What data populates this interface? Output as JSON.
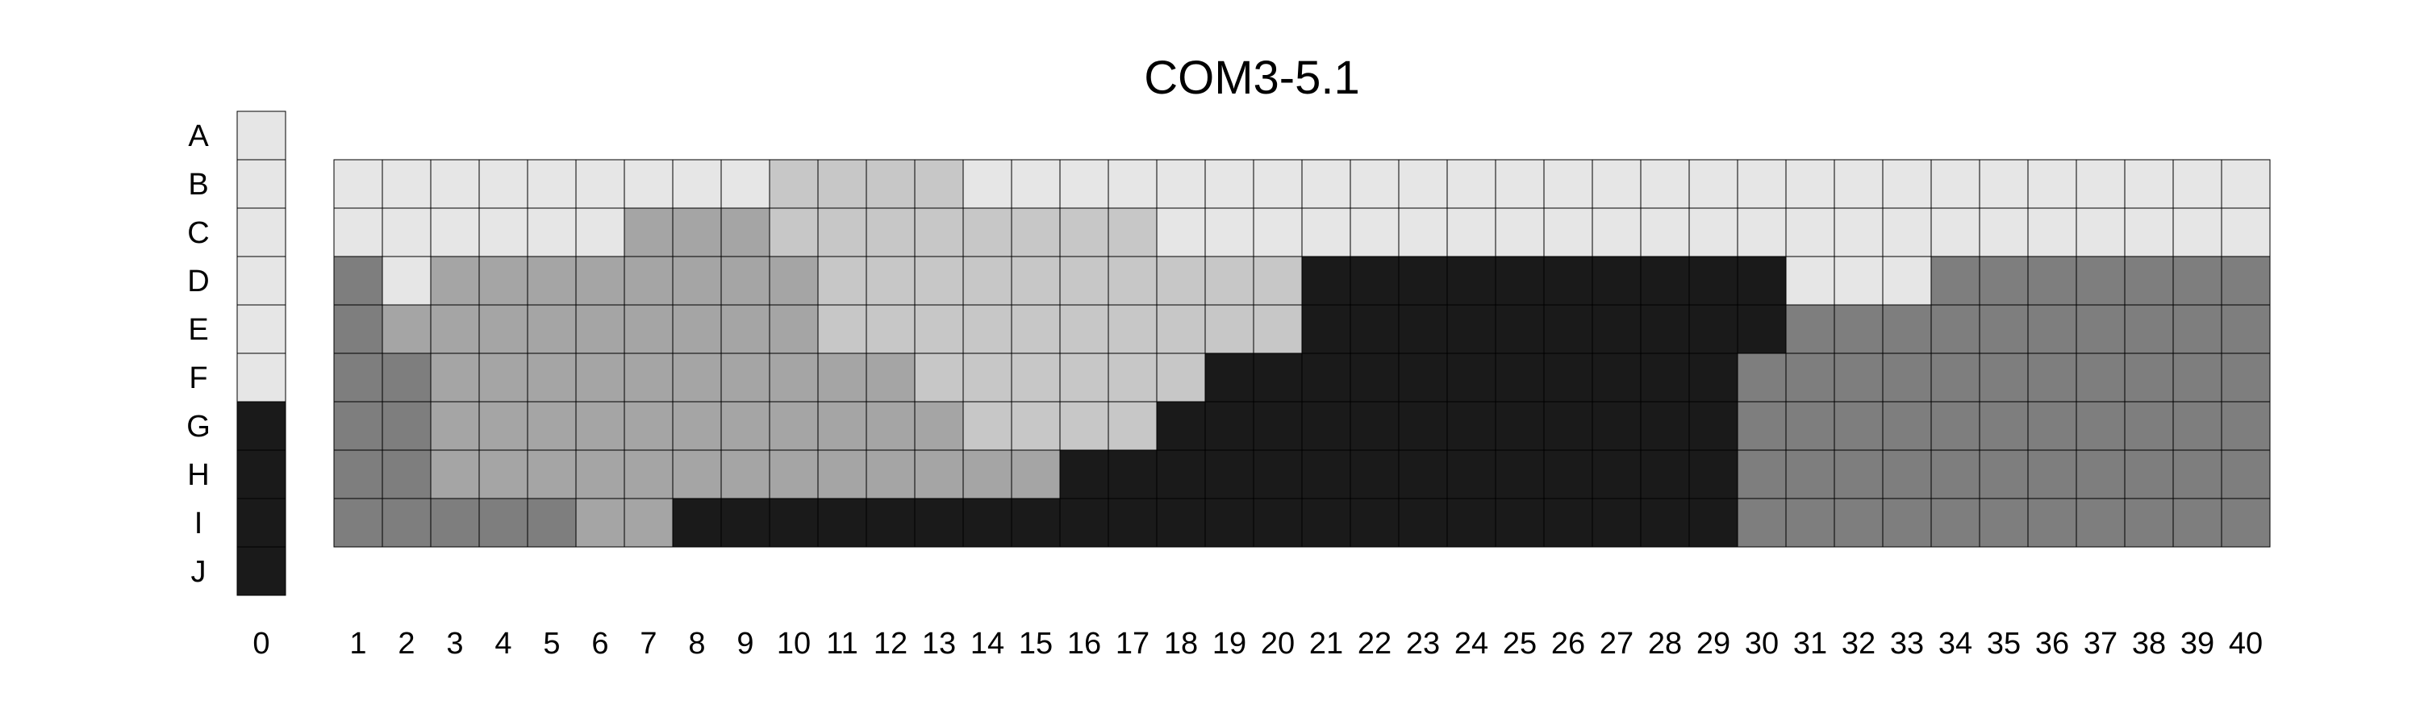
{
  "chart_data": {
    "type": "heatmap",
    "title": "COM3-5.1",
    "row_labels": [
      "A",
      "B",
      "C",
      "D",
      "E",
      "F",
      "G",
      "H",
      "I",
      "J"
    ],
    "column_labels": [
      "0",
      "1",
      "2",
      "3",
      "4",
      "5",
      "6",
      "7",
      "8",
      "9",
      "10",
      "11",
      "12",
      "13",
      "14",
      "15",
      "16",
      "17",
      "18",
      "19",
      "20",
      "21",
      "22",
      "23",
      "24",
      "25",
      "26",
      "27",
      "28",
      "29",
      "30",
      "31",
      "32",
      "33",
      "34",
      "35",
      "36",
      "37",
      "38",
      "39",
      "40"
    ],
    "reference_column": {
      "label": "0",
      "rows": [
        "A",
        "B",
        "C",
        "D",
        "E",
        "F",
        "G",
        "H",
        "I",
        "J"
      ],
      "values": [
        1,
        1,
        1,
        1,
        1,
        1,
        5,
        5,
        5,
        5
      ]
    },
    "grid": {
      "rows": [
        "B",
        "C",
        "D",
        "E",
        "F",
        "G",
        "H",
        "I"
      ],
      "columns": [
        "1",
        "2",
        "3",
        "4",
        "5",
        "6",
        "7",
        "8",
        "9",
        "10",
        "11",
        "12",
        "13",
        "14",
        "15",
        "16",
        "17",
        "18",
        "19",
        "20",
        "21",
        "22",
        "23",
        "24",
        "25",
        "26",
        "27",
        "28",
        "29",
        "30",
        "31",
        "32",
        "33",
        "34",
        "35",
        "36",
        "37",
        "38",
        "39",
        "40"
      ],
      "values": [
        [
          1,
          1,
          1,
          1,
          1,
          1,
          1,
          1,
          1,
          2,
          2,
          2,
          2,
          1,
          1,
          1,
          1,
          1,
          1,
          1,
          1,
          1,
          1,
          1,
          1,
          1,
          1,
          1,
          1,
          1,
          1,
          1,
          1,
          1,
          1,
          1,
          1,
          1,
          1,
          1
        ],
        [
          1,
          1,
          1,
          1,
          1,
          1,
          3,
          3,
          3,
          2,
          2,
          2,
          2,
          2,
          2,
          2,
          2,
          1,
          1,
          1,
          1,
          1,
          1,
          1,
          1,
          1,
          1,
          1,
          1,
          1,
          1,
          1,
          1,
          1,
          1,
          1,
          1,
          1,
          1,
          1
        ],
        [
          4,
          1,
          3,
          3,
          3,
          3,
          3,
          3,
          3,
          3,
          2,
          2,
          2,
          2,
          2,
          2,
          2,
          2,
          2,
          2,
          5,
          5,
          5,
          5,
          5,
          5,
          5,
          5,
          5,
          5,
          1,
          1,
          1,
          4,
          4,
          4,
          4,
          4,
          4,
          4
        ],
        [
          4,
          3,
          3,
          3,
          3,
          3,
          3,
          3,
          3,
          3,
          2,
          2,
          2,
          2,
          2,
          2,
          2,
          2,
          2,
          2,
          5,
          5,
          5,
          5,
          5,
          5,
          5,
          5,
          5,
          5,
          4,
          4,
          4,
          4,
          4,
          4,
          4,
          4,
          4,
          4
        ],
        [
          4,
          4,
          3,
          3,
          3,
          3,
          3,
          3,
          3,
          3,
          3,
          3,
          2,
          2,
          2,
          2,
          2,
          2,
          5,
          5,
          5,
          5,
          5,
          5,
          5,
          5,
          5,
          5,
          5,
          4,
          4,
          4,
          4,
          4,
          4,
          4,
          4,
          4,
          4,
          4
        ],
        [
          4,
          4,
          3,
          3,
          3,
          3,
          3,
          3,
          3,
          3,
          3,
          3,
          3,
          2,
          2,
          2,
          2,
          5,
          5,
          5,
          5,
          5,
          5,
          5,
          5,
          5,
          5,
          5,
          5,
          4,
          4,
          4,
          4,
          4,
          4,
          4,
          4,
          4,
          4,
          4
        ],
        [
          4,
          4,
          3,
          3,
          3,
          3,
          3,
          3,
          3,
          3,
          3,
          3,
          3,
          3,
          3,
          5,
          5,
          5,
          5,
          5,
          5,
          5,
          5,
          5,
          5,
          5,
          5,
          5,
          5,
          4,
          4,
          4,
          4,
          4,
          4,
          4,
          4,
          4,
          4,
          4
        ],
        [
          4,
          4,
          4,
          4,
          4,
          3,
          3,
          5,
          5,
          5,
          5,
          5,
          5,
          5,
          5,
          5,
          5,
          5,
          5,
          5,
          5,
          5,
          5,
          5,
          5,
          5,
          5,
          5,
          5,
          4,
          4,
          4,
          4,
          4,
          4,
          4,
          4,
          4,
          4,
          4
        ]
      ]
    },
    "colors": {
      "1": "#e6e6e6",
      "2": "#c7c7c7",
      "3": "#a5a5a5",
      "4": "#7e7e7e",
      "5": "#1a1a1a"
    },
    "gridline_color": "#000000"
  }
}
